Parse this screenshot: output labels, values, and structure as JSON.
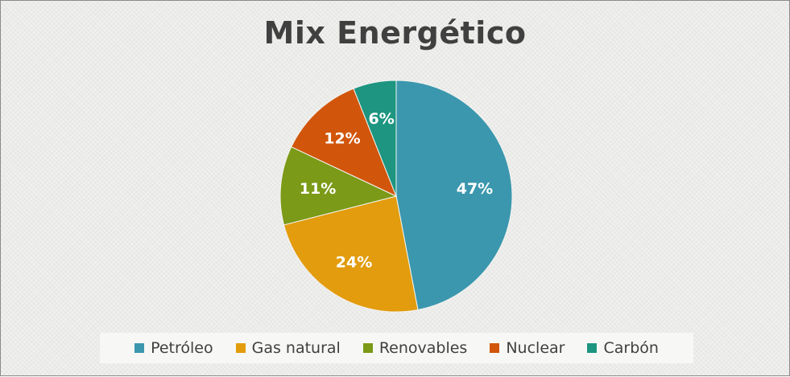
{
  "chart_data": {
    "type": "pie",
    "title": "Mix Energético",
    "legend_position": "bottom",
    "slices": [
      {
        "name": "Petróleo",
        "value": 47,
        "label": "47%",
        "color": "#3b97ad"
      },
      {
        "name": "Gas natural",
        "value": 24,
        "label": "24%",
        "color": "#e29c0e"
      },
      {
        "name": "Renovables",
        "value": 11,
        "label": "11%",
        "color": "#7b9a17"
      },
      {
        "name": "Nuclear",
        "value": 12,
        "label": "12%",
        "color": "#d1560b"
      },
      {
        "name": "Carbón",
        "value": 6,
        "label": "6%",
        "color": "#1d9580"
      }
    ]
  }
}
